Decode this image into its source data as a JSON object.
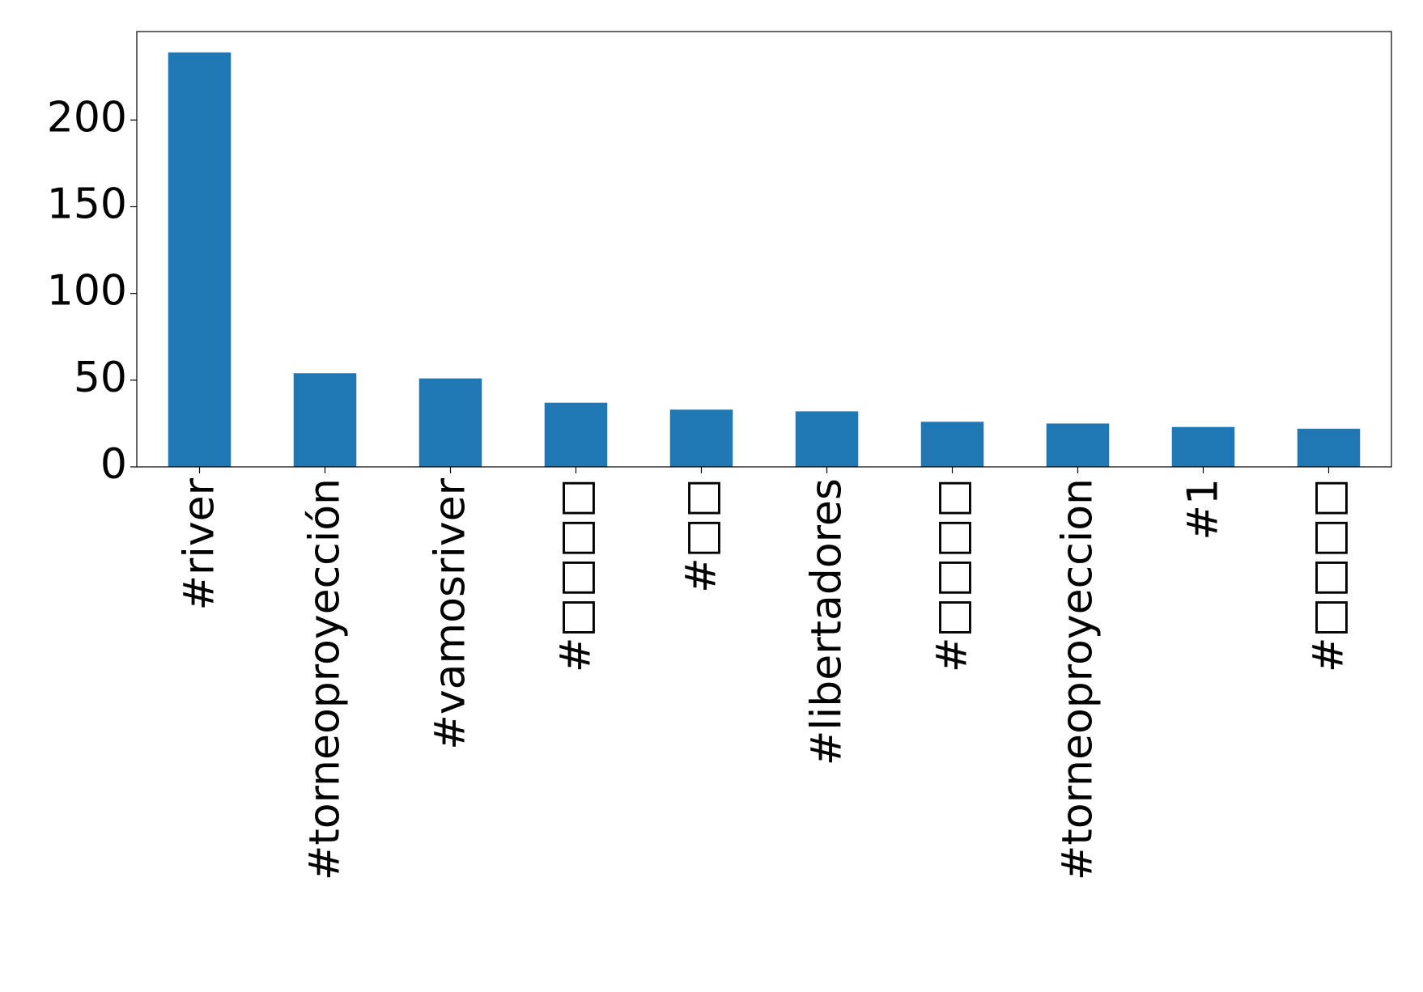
{
  "chart_data": {
    "type": "bar",
    "categories": [
      "#river",
      "#torneoproyección",
      "#vamosriver",
      "#□□□□",
      "#□□",
      "#libertadores",
      "#□□□□",
      "#torneoproyeccion",
      "#1",
      "#□□□□"
    ],
    "values": [
      239,
      54,
      51,
      37,
      33,
      32,
      26,
      25,
      23,
      22
    ],
    "color": "#1f77b4",
    "ylim": [
      0,
      251
    ],
    "yticks": [
      0,
      50,
      100,
      150,
      200
    ],
    "grid": false
  }
}
